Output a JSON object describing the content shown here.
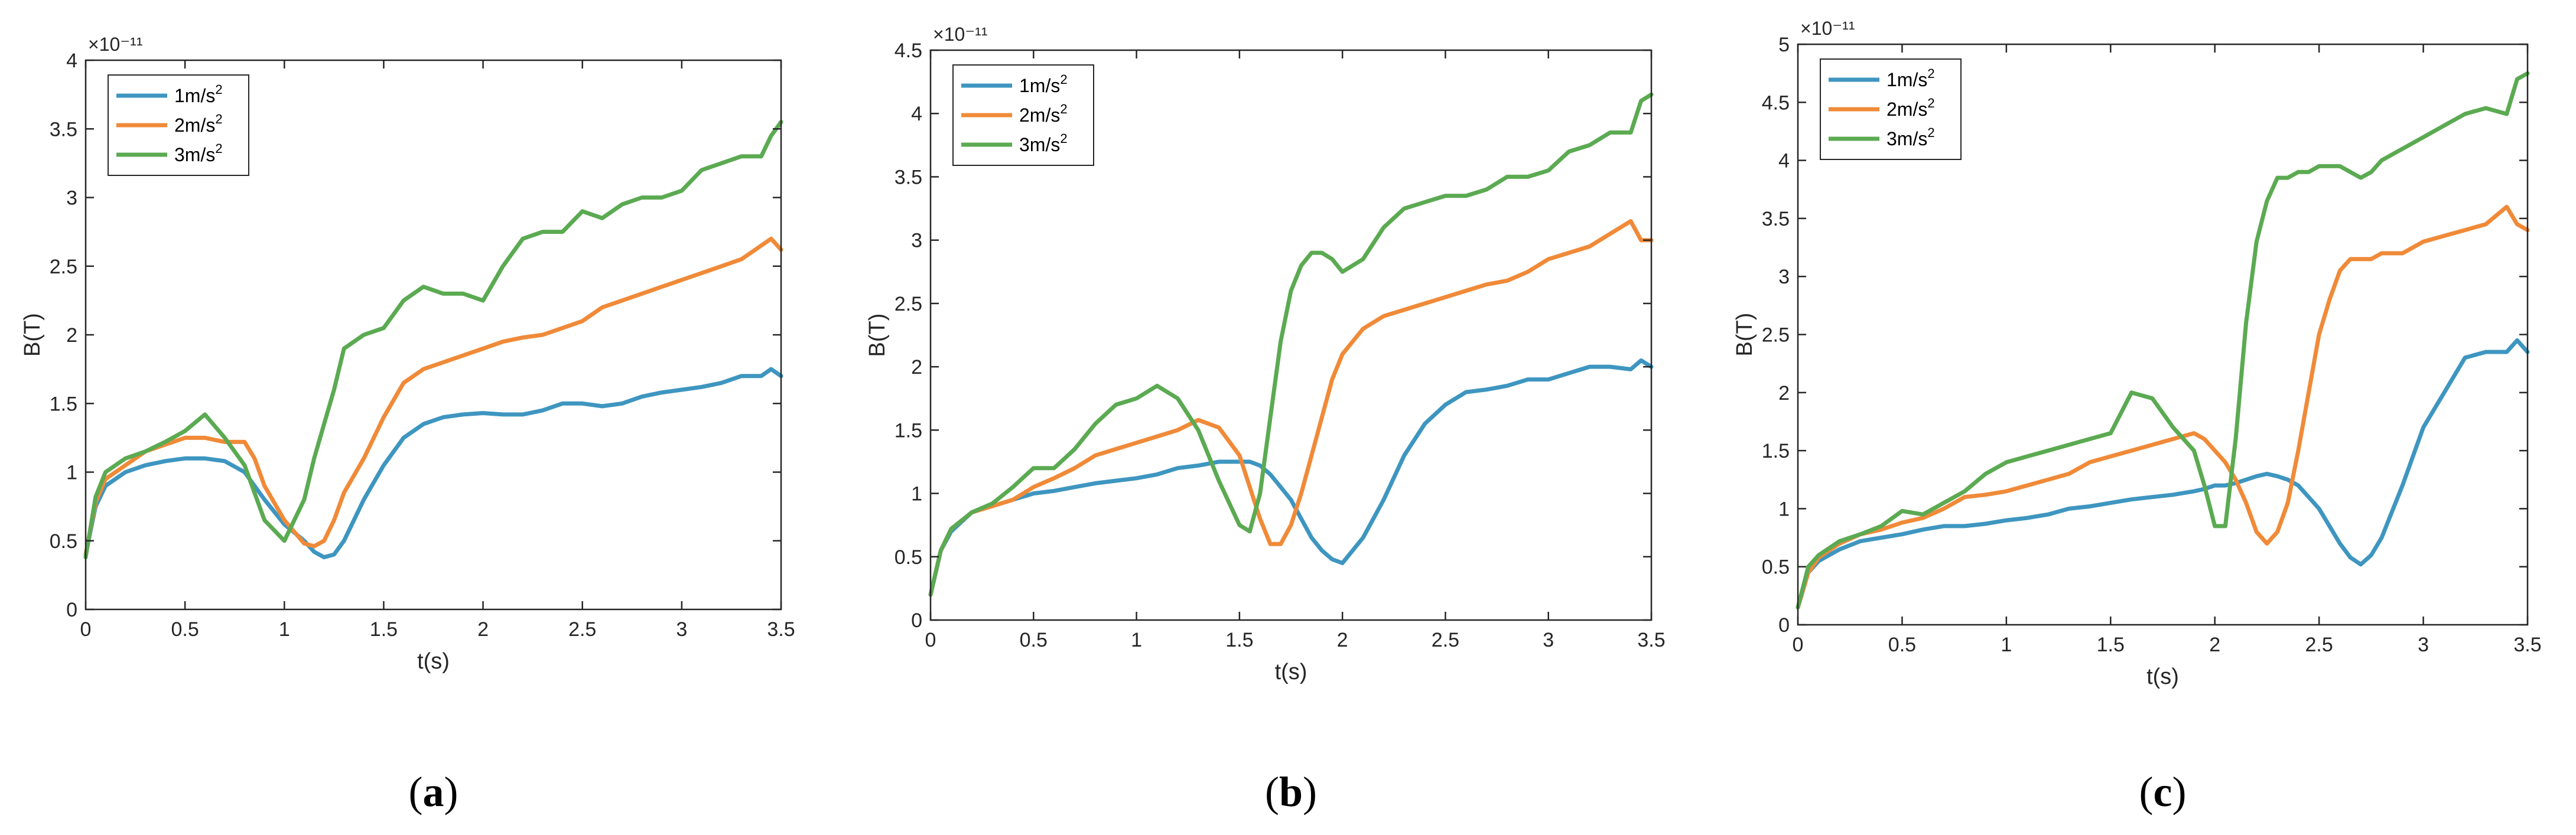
{
  "chart_data": [
    {
      "type": "line",
      "panel_label": "a",
      "xlabel": "t(s)",
      "ylabel": "B(T)",
      "y_exponent": "×10⁻¹¹",
      "xlim": [
        0,
        3.5
      ],
      "ylim": [
        0,
        4
      ],
      "xticks": [
        0,
        0.5,
        1,
        1.5,
        2,
        2.5,
        3,
        3.5
      ],
      "yticks": [
        0,
        0.5,
        1,
        1.5,
        2,
        2.5,
        3,
        3.5,
        4
      ],
      "legend_position": "top-left",
      "x": [
        0,
        0.05,
        0.1,
        0.2,
        0.3,
        0.4,
        0.5,
        0.6,
        0.7,
        0.8,
        0.85,
        0.9,
        1.0,
        1.1,
        1.15,
        1.2,
        1.25,
        1.3,
        1.4,
        1.5,
        1.6,
        1.7,
        1.8,
        1.9,
        2.0,
        2.1,
        2.2,
        2.3,
        2.4,
        2.5,
        2.6,
        2.7,
        2.8,
        2.9,
        3.0,
        3.1,
        3.2,
        3.3,
        3.4,
        3.45,
        3.5
      ],
      "series": [
        {
          "name": "1m/s",
          "sup": "2",
          "color": "#3E96C0",
          "values": [
            0.4,
            0.75,
            0.9,
            1.0,
            1.05,
            1.08,
            1.1,
            1.1,
            1.08,
            1.0,
            0.9,
            0.8,
            0.62,
            0.5,
            0.42,
            0.38,
            0.4,
            0.5,
            0.8,
            1.05,
            1.25,
            1.35,
            1.4,
            1.42,
            1.43,
            1.42,
            1.42,
            1.45,
            1.5,
            1.5,
            1.48,
            1.5,
            1.55,
            1.58,
            1.6,
            1.62,
            1.65,
            1.7,
            1.7,
            1.75,
            1.7
          ]
        },
        {
          "name": "2m/s",
          "sup": "2",
          "color": "#F08A38",
          "values": [
            0.4,
            0.78,
            0.95,
            1.05,
            1.15,
            1.2,
            1.25,
            1.25,
            1.22,
            1.22,
            1.1,
            0.9,
            0.65,
            0.48,
            0.46,
            0.5,
            0.65,
            0.85,
            1.1,
            1.4,
            1.65,
            1.75,
            1.8,
            1.85,
            1.9,
            1.95,
            1.98,
            2.0,
            2.05,
            2.1,
            2.2,
            2.25,
            2.3,
            2.35,
            2.4,
            2.45,
            2.5,
            2.55,
            2.65,
            2.7,
            2.62
          ]
        },
        {
          "name": "3m/s",
          "sup": "2",
          "color": "#5BAA52",
          "values": [
            0.38,
            0.82,
            1.0,
            1.1,
            1.15,
            1.22,
            1.3,
            1.42,
            1.25,
            1.05,
            0.85,
            0.65,
            0.5,
            0.8,
            1.1,
            1.35,
            1.6,
            1.9,
            2.0,
            2.05,
            2.25,
            2.35,
            2.3,
            2.3,
            2.25,
            2.5,
            2.7,
            2.75,
            2.75,
            2.9,
            2.85,
            2.95,
            3.0,
            3.0,
            3.05,
            3.2,
            3.25,
            3.3,
            3.3,
            3.45,
            3.55
          ]
        }
      ]
    },
    {
      "type": "line",
      "panel_label": "b",
      "xlabel": "t(s)",
      "ylabel": "B(T)",
      "y_exponent": "×10⁻¹¹",
      "xlim": [
        0,
        3.5
      ],
      "ylim": [
        0,
        4.5
      ],
      "xticks": [
        0,
        0.5,
        1,
        1.5,
        2,
        2.5,
        3,
        3.5
      ],
      "yticks": [
        0,
        0.5,
        1,
        1.5,
        2,
        2.5,
        3,
        3.5,
        4,
        4.5
      ],
      "legend_position": "top-left",
      "x": [
        0,
        0.05,
        0.1,
        0.2,
        0.3,
        0.4,
        0.5,
        0.6,
        0.7,
        0.8,
        0.9,
        1.0,
        1.1,
        1.2,
        1.3,
        1.4,
        1.5,
        1.55,
        1.6,
        1.65,
        1.7,
        1.75,
        1.8,
        1.85,
        1.9,
        1.95,
        2.0,
        2.1,
        2.2,
        2.3,
        2.4,
        2.5,
        2.6,
        2.7,
        2.8,
        2.9,
        3.0,
        3.1,
        3.2,
        3.3,
        3.4,
        3.45,
        3.5
      ],
      "series": [
        {
          "name": "1m/s",
          "sup": "2",
          "color": "#3E96C0",
          "values": [
            0.2,
            0.55,
            0.7,
            0.85,
            0.9,
            0.95,
            1.0,
            1.02,
            1.05,
            1.08,
            1.1,
            1.12,
            1.15,
            1.2,
            1.22,
            1.25,
            1.25,
            1.25,
            1.22,
            1.15,
            1.05,
            0.95,
            0.8,
            0.65,
            0.55,
            0.48,
            0.45,
            0.65,
            0.95,
            1.3,
            1.55,
            1.7,
            1.8,
            1.82,
            1.85,
            1.9,
            1.9,
            1.95,
            2.0,
            2.0,
            1.98,
            2.05,
            2.0
          ]
        },
        {
          "name": "2m/s",
          "sup": "2",
          "color": "#F08A38",
          "values": [
            0.2,
            0.55,
            0.72,
            0.85,
            0.9,
            0.95,
            1.05,
            1.12,
            1.2,
            1.3,
            1.35,
            1.4,
            1.45,
            1.5,
            1.58,
            1.52,
            1.3,
            1.05,
            0.8,
            0.6,
            0.6,
            0.75,
            1.0,
            1.3,
            1.6,
            1.9,
            2.1,
            2.3,
            2.4,
            2.45,
            2.5,
            2.55,
            2.6,
            2.65,
            2.68,
            2.75,
            2.85,
            2.9,
            2.95,
            3.05,
            3.15,
            3.0,
            3.0
          ]
        },
        {
          "name": "3m/s",
          "sup": "2",
          "color": "#5BAA52",
          "values": [
            0.2,
            0.55,
            0.72,
            0.85,
            0.92,
            1.05,
            1.2,
            1.2,
            1.35,
            1.55,
            1.7,
            1.75,
            1.85,
            1.75,
            1.5,
            1.1,
            0.75,
            0.7,
            1.0,
            1.6,
            2.2,
            2.6,
            2.8,
            2.9,
            2.9,
            2.85,
            2.75,
            2.85,
            3.1,
            3.25,
            3.3,
            3.35,
            3.35,
            3.4,
            3.5,
            3.5,
            3.55,
            3.7,
            3.75,
            3.85,
            3.85,
            4.1,
            4.15
          ]
        }
      ]
    },
    {
      "type": "line",
      "panel_label": "c",
      "xlabel": "t(s)",
      "ylabel": "B(T)",
      "y_exponent": "×10⁻¹¹",
      "xlim": [
        0,
        3.5
      ],
      "ylim": [
        0,
        5
      ],
      "xticks": [
        0,
        0.5,
        1,
        1.5,
        2,
        2.5,
        3,
        3.5
      ],
      "yticks": [
        0,
        0.5,
        1,
        1.5,
        2,
        2.5,
        3,
        3.5,
        4,
        4.5,
        5
      ],
      "legend_position": "top-left",
      "x": [
        0,
        0.05,
        0.1,
        0.2,
        0.3,
        0.4,
        0.5,
        0.6,
        0.7,
        0.8,
        0.9,
        1.0,
        1.1,
        1.2,
        1.3,
        1.4,
        1.5,
        1.6,
        1.7,
        1.8,
        1.9,
        1.95,
        2.0,
        2.05,
        2.1,
        2.15,
        2.2,
        2.25,
        2.3,
        2.35,
        2.4,
        2.45,
        2.5,
        2.55,
        2.6,
        2.65,
        2.7,
        2.75,
        2.8,
        2.9,
        3.0,
        3.1,
        3.2,
        3.3,
        3.4,
        3.45,
        3.5
      ],
      "series": [
        {
          "name": "1m/s",
          "sup": "2",
          "color": "#3E96C0",
          "values": [
            0.15,
            0.45,
            0.55,
            0.65,
            0.72,
            0.75,
            0.78,
            0.82,
            0.85,
            0.85,
            0.87,
            0.9,
            0.92,
            0.95,
            1.0,
            1.02,
            1.05,
            1.08,
            1.1,
            1.12,
            1.15,
            1.17,
            1.2,
            1.2,
            1.22,
            1.25,
            1.28,
            1.3,
            1.28,
            1.25,
            1.2,
            1.1,
            1.0,
            0.85,
            0.7,
            0.58,
            0.52,
            0.6,
            0.75,
            1.2,
            1.7,
            2.0,
            2.3,
            2.35,
            2.35,
            2.45,
            2.35
          ]
        },
        {
          "name": "2m/s",
          "sup": "2",
          "color": "#F08A38",
          "values": [
            0.15,
            0.45,
            0.58,
            0.7,
            0.78,
            0.82,
            0.88,
            0.92,
            1.0,
            1.1,
            1.12,
            1.15,
            1.2,
            1.25,
            1.3,
            1.4,
            1.45,
            1.5,
            1.55,
            1.6,
            1.65,
            1.6,
            1.5,
            1.4,
            1.25,
            1.05,
            0.8,
            0.7,
            0.8,
            1.05,
            1.5,
            2.0,
            2.5,
            2.8,
            3.05,
            3.15,
            3.15,
            3.15,
            3.2,
            3.2,
            3.3,
            3.35,
            3.4,
            3.45,
            3.6,
            3.45,
            3.4
          ]
        },
        {
          "name": "3m/s",
          "sup": "2",
          "color": "#5BAA52",
          "values": [
            0.15,
            0.5,
            0.6,
            0.72,
            0.78,
            0.85,
            0.98,
            0.95,
            1.05,
            1.15,
            1.3,
            1.4,
            1.45,
            1.5,
            1.55,
            1.6,
            1.65,
            2.0,
            1.95,
            1.7,
            1.5,
            1.2,
            0.85,
            0.85,
            1.6,
            2.6,
            3.3,
            3.65,
            3.85,
            3.85,
            3.9,
            3.9,
            3.95,
            3.95,
            3.95,
            3.9,
            3.85,
            3.9,
            4.0,
            4.1,
            4.2,
            4.3,
            4.4,
            4.45,
            4.4,
            4.7,
            4.75
          ]
        }
      ]
    }
  ]
}
